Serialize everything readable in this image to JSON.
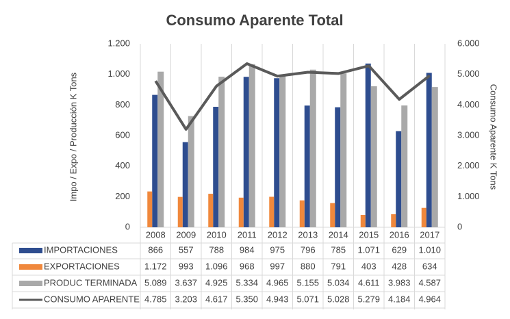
{
  "chart_data": {
    "type": "bar_line",
    "title": "Consumo Aparente Total",
    "ylabel": "Impo / Expo / Producción K Tons",
    "y2label": "Consumo Aparente K Tons",
    "categories": [
      "2008",
      "2009",
      "2010",
      "2011",
      "2012",
      "2013",
      "2014",
      "2015",
      "2016",
      "2017"
    ],
    "ylim": [
      0,
      1200
    ],
    "yticks": [
      0,
      200,
      400,
      600,
      800,
      {
        "value": 1000,
        "label": "1.000"
      },
      {
        "value": 1200,
        "label": "1.200"
      }
    ],
    "y2lim": [
      0,
      6000
    ],
    "y2ticks": [
      0,
      {
        "value": 1000,
        "label": "1.000"
      },
      {
        "value": 2000,
        "label": "2.000"
      },
      {
        "value": 3000,
        "label": "3.000"
      },
      {
        "value": 4000,
        "label": "4.000"
      },
      {
        "value": 5000,
        "label": "5.000"
      },
      {
        "value": 6000,
        "label": "6.000"
      }
    ],
    "series": [
      {
        "name": "IMPORTACIONES",
        "color": "#2e4d8f",
        "kind": "bar",
        "axis": "y",
        "values": [
          866,
          557,
          788,
          984,
          975,
          796,
          785,
          1071,
          629,
          1010
        ],
        "value_labels": [
          "866",
          "557",
          "788",
          "984",
          "975",
          "796",
          "785",
          "1.071",
          "629",
          "1.010"
        ]
      },
      {
        "name": "EXPORTACIONES",
        "color": "#f0883c",
        "kind": "bar",
        "axis": "y2",
        "values": [
          1172,
          993,
          1096,
          968,
          997,
          880,
          791,
          403,
          428,
          634
        ],
        "value_labels": [
          "1.172",
          "993",
          "1.096",
          "968",
          "997",
          "880",
          "791",
          "403",
          "428",
          "634"
        ]
      },
      {
        "name": "PRODUC TERMINADA",
        "color": "#a9a9a9",
        "kind": "bar",
        "axis": "y2",
        "values": [
          5089,
          3637,
          4925,
          5334,
          4965,
          5155,
          5034,
          4611,
          3983,
          4587
        ],
        "value_labels": [
          "5.089",
          "3.637",
          "4.925",
          "5.334",
          "4.965",
          "5.155",
          "5.034",
          "4.611",
          "3.983",
          "4.587"
        ]
      },
      {
        "name": "CONSUMO APARENTE",
        "color": "#5a5a5a",
        "kind": "line",
        "axis": "y2",
        "values": [
          4785,
          3203,
          4617,
          5350,
          4943,
          5071,
          5028,
          5279,
          4184,
          4964
        ],
        "value_labels": [
          "4.785",
          "3.203",
          "4.617",
          "5.350",
          "4.943",
          "5.071",
          "5.028",
          "5.279",
          "4.184",
          "4.964"
        ]
      }
    ]
  }
}
